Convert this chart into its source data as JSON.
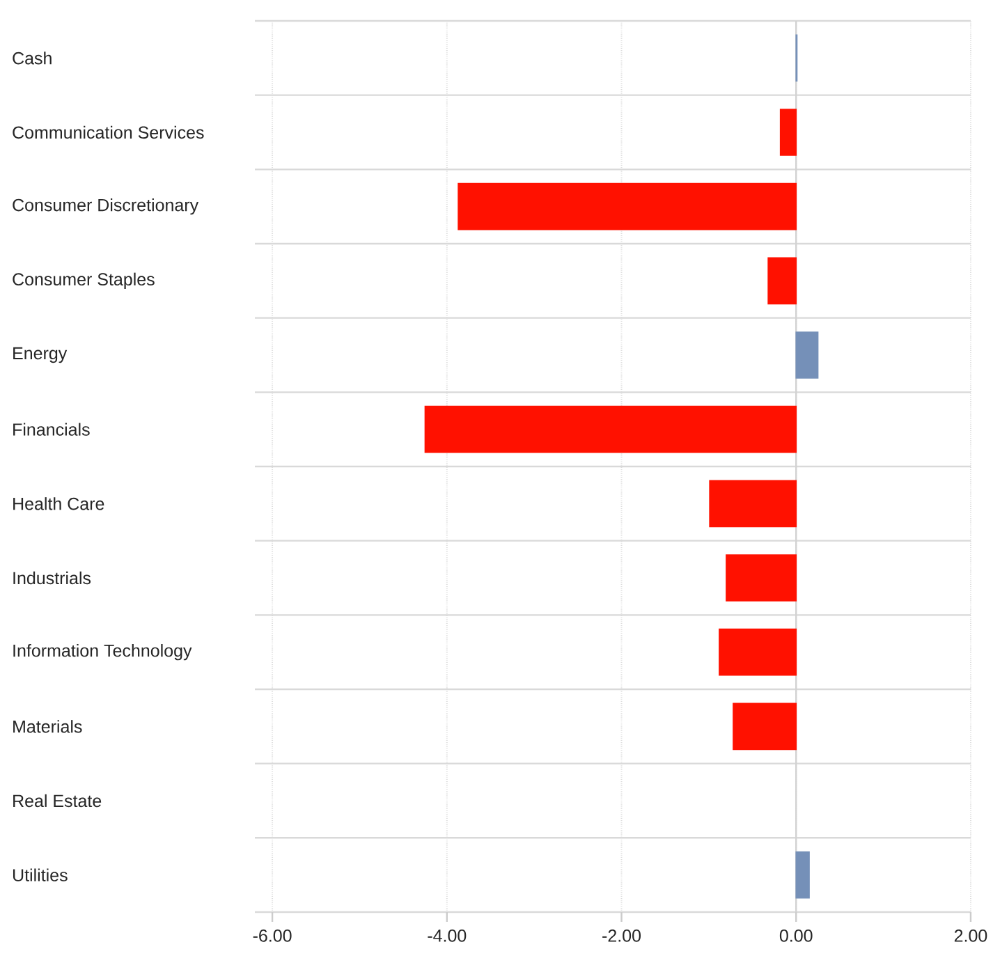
{
  "chart_data": {
    "type": "bar",
    "orientation": "horizontal",
    "categories": [
      "Cash",
      "Communication Services",
      "Consumer Discretionary",
      "Consumer Staples",
      "Energy",
      "Financials",
      "Health Care",
      "Industrials",
      "Information Technology",
      "Materials",
      "Real Estate",
      "Utilities"
    ],
    "values": [
      0.01,
      -0.18,
      -3.87,
      -0.32,
      0.25,
      -4.25,
      -0.99,
      -0.8,
      -0.88,
      -0.72,
      null,
      0.15
    ],
    "colors": [
      "#7590b8",
      "#ff1100",
      "#ff1100",
      "#ff1100",
      "#7590b8",
      "#ff1100",
      "#ff1100",
      "#ff1100",
      "#ff1100",
      "#ff1100",
      "#ff1100",
      "#7590b8"
    ],
    "xlim": [
      -6.2,
      2
    ],
    "xticks": [
      {
        "value": -6,
        "label": "-6.00"
      },
      {
        "value": -4,
        "label": "-4.00"
      },
      {
        "value": -2,
        "label": "-2.00"
      },
      {
        "value": 0,
        "label": "0.00"
      },
      {
        "value": 2,
        "label": "2.00"
      }
    ],
    "grid": "x"
  }
}
